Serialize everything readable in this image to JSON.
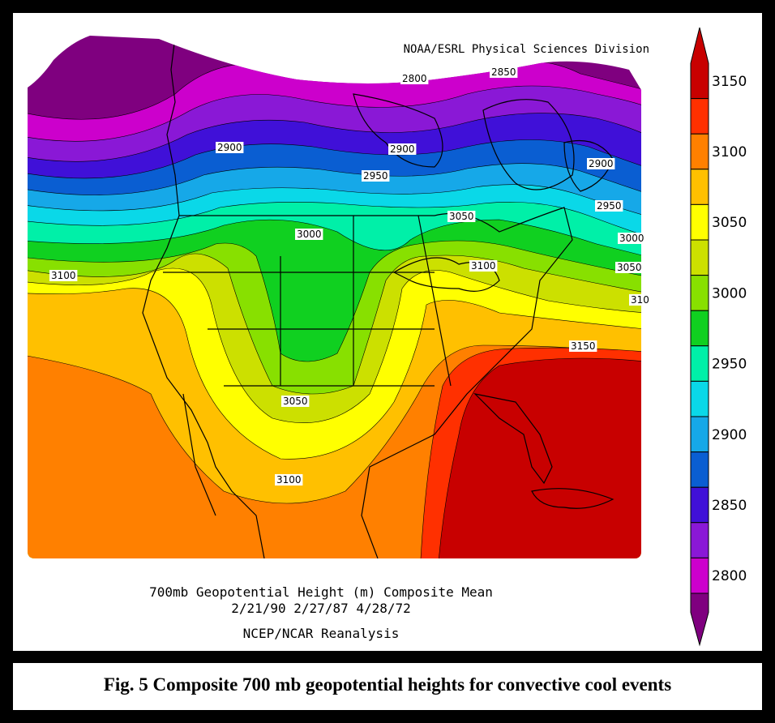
{
  "map": {
    "credit": "NOAA/ESRL Physical Sciences Division",
    "caption_line1": "700mb Geopotential Height (m) Composite Mean",
    "caption_line2": "2/21/90 2/27/87 4/28/72",
    "caption_line3": "NCEP/NCAR Reanalysis",
    "contour_labels": [
      "2800",
      "2850",
      "2900",
      "2900",
      "2900",
      "2950",
      "2950",
      "3000",
      "3000",
      "3050",
      "3050",
      "3100",
      "3100",
      "310",
      "3150",
      "3050",
      "3100"
    ]
  },
  "colorbar": {
    "ticks": [
      "3150",
      "3100",
      "3050",
      "3000",
      "2950",
      "2900",
      "2850",
      "2800"
    ],
    "colors": {
      "bin_2775": "#7f007f",
      "bin_2825": "#cc00cc",
      "bin_2850": "#8a18d6",
      "bin_2875": "#4010d8",
      "bin_2900": "#0a5ed2",
      "bin_2925": "#16a8e8",
      "bin_2950": "#0ad8e8",
      "bin_2975": "#00f0a8",
      "bin_3000": "#10d020",
      "bin_3025": "#88e000",
      "bin_3050": "#cce000",
      "bin_3075": "#ffff00",
      "bin_3100": "#ffc000",
      "bin_3125": "#ff8000",
      "bin_3150": "#ff3000",
      "bin_3175": "#c80000"
    }
  },
  "figure": {
    "caption": "Fig. 5 Composite 700 mb geopotential heights for convective cool events"
  }
}
